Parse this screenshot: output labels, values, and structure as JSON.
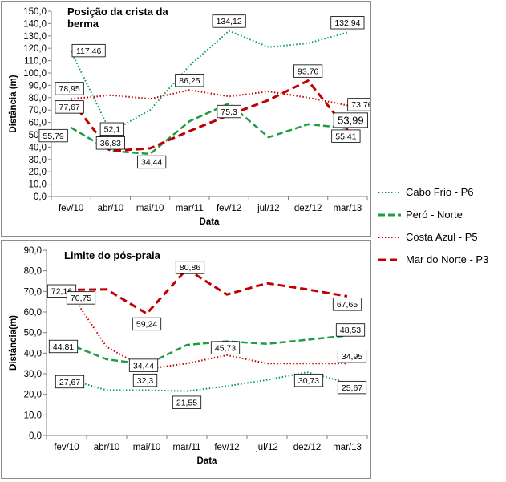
{
  "colors": {
    "cabo_frio": "#00a050",
    "pero": "#1e9e40",
    "costa_azul": "#c00000",
    "mar_norte": "#c00000",
    "axis": "#808080",
    "label_box": "#000000"
  },
  "legend": {
    "items": [
      {
        "label": "Cabo Frio - P6",
        "series": "Cabo Frio - P6"
      },
      {
        "label": "Peró - Norte",
        "series": "Peró - Norte"
      },
      {
        "label": "Costa Azul - P5",
        "series": "Costa Azul - P5"
      },
      {
        "label": "Mar do Norte - P3",
        "series": "Mar do Norte - P3"
      }
    ]
  },
  "chart_data": [
    {
      "type": "line",
      "title": "Posição da crista da berma",
      "xlabel": "Data",
      "ylabel": "Distância (m)",
      "ylim": [
        0,
        150
      ],
      "ytick_step": 10,
      "grid": false,
      "legend_placement": "right",
      "categories": [
        "fev/10",
        "abr/10",
        "mai/10",
        "mar/11",
        "fev/12",
        "jul/12",
        "dez/12",
        "mar/13"
      ],
      "series": [
        {
          "name": "Cabo Frio - P6",
          "values": [
            117.46,
            52.1,
            70,
            106,
            134.12,
            121,
            124,
            132.94
          ],
          "labels": {
            "0": "117,46",
            "1": "52,1",
            "4": "134,12",
            "7": "132,94"
          }
        },
        {
          "name": "Peró - Norte",
          "values": [
            55.79,
            37,
            34.44,
            61,
            75.3,
            48,
            58.5,
            55.41
          ],
          "labels": {
            "0": "55,79",
            "2": "34,44",
            "4": "75,3",
            "7": "55,41"
          }
        },
        {
          "name": "Costa Azul - P5",
          "values": [
            78.95,
            82,
            79,
            86.25,
            81,
            85,
            80,
            73.76
          ],
          "labels": {
            "0": "78,95",
            "3": "86,25",
            "7": "73,76"
          }
        },
        {
          "name": "Mar do Norte - P3",
          "values": [
            77.67,
            36.83,
            39,
            53,
            66,
            78,
            93.76,
            53.99
          ],
          "labels": {
            "0": "77,67",
            "1": "36,83",
            "6": "93,76",
            "7": "53,99"
          }
        }
      ]
    },
    {
      "type": "line",
      "title": "Limite do pós-praia",
      "xlabel": "Data",
      "ylabel": "Distância(m)",
      "ylim": [
        0,
        90
      ],
      "ytick_step": 10,
      "grid": false,
      "legend_placement": "right",
      "categories": [
        "fev/10",
        "abr/10",
        "mai/10",
        "mar/11",
        "fev/12",
        "jul/12",
        "dez/12",
        "mar/13"
      ],
      "series": [
        {
          "name": "Cabo Frio - P6",
          "values": [
            27.67,
            22,
            22,
            21.55,
            24,
            27,
            30.73,
            25.67
          ],
          "labels": {
            "0": "27,67",
            "3": "21,55",
            "6": "30,73",
            "7": "25,67"
          }
        },
        {
          "name": "Peró - Norte",
          "values": [
            44.81,
            37,
            34.44,
            44,
            45.73,
            44.5,
            46.5,
            48.53
          ],
          "labels": {
            "0": "44,81",
            "2": "34,44",
            "4": "45,73",
            "7": "48,53"
          }
        },
        {
          "name": "Costa Azul - P5",
          "values": [
            72.16,
            43,
            32.3,
            35,
            39,
            35,
            35,
            34.95
          ],
          "labels": {
            "0": "72,16",
            "2": "32,3",
            "7": "34,95"
          }
        },
        {
          "name": "Mar do Norte - P3",
          "values": [
            70.75,
            71,
            59.24,
            80.86,
            68.5,
            74,
            71,
            67.65
          ],
          "labels": {
            "0": "70,75",
            "2": "59,24",
            "3": "80,86",
            "7": "67,65"
          }
        }
      ]
    }
  ]
}
